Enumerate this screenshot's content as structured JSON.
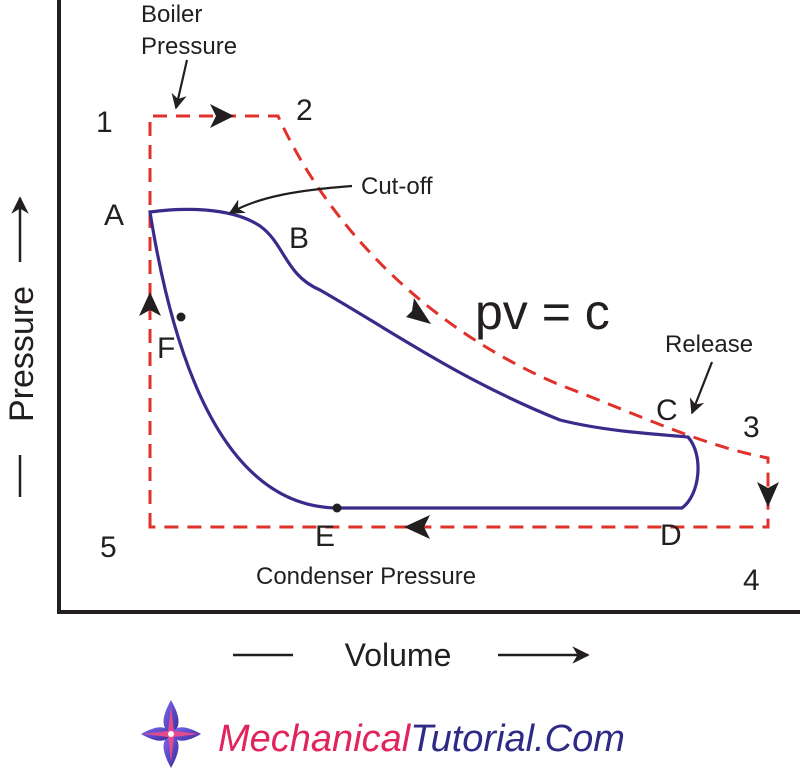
{
  "diagram": {
    "axes": {
      "y_label": "Pressure",
      "x_label": "Volume"
    },
    "annotations": {
      "boiler_pressure_line1": "Boiler",
      "boiler_pressure_line2": "Pressure",
      "cut_off": "Cut-off",
      "equation": "pv = c",
      "release": "Release",
      "condenser_pressure": "Condenser Pressure"
    },
    "ideal_points": {
      "p1": "1",
      "p2": "2",
      "p3": "3",
      "p4": "4",
      "p5": "5"
    },
    "actual_points": {
      "A": "A",
      "B": "B",
      "C": "C",
      "D": "D",
      "E": "E",
      "F": "F"
    },
    "colors": {
      "ideal_cycle": "#e0312a",
      "actual_cycle": "#3a2a8a",
      "axes": "#231f20"
    }
  },
  "branding": {
    "logo_icon": "flower-star-icon",
    "part1": "Mechanical",
    "part2": "Tutorial.Com",
    "color_part1": "#e0245e",
    "color_part2": "#2e2a86"
  }
}
